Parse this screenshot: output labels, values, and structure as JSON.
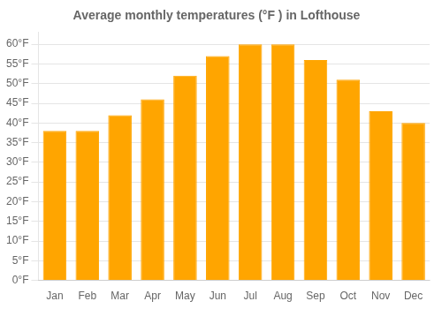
{
  "chart_data": {
    "type": "bar",
    "title": "Average monthly temperatures (°F ) in Lofthouse",
    "categories": [
      "Jan",
      "Feb",
      "Mar",
      "Apr",
      "May",
      "Jun",
      "Jul",
      "Aug",
      "Sep",
      "Oct",
      "Nov",
      "Dec"
    ],
    "values": [
      38,
      38,
      42,
      46,
      52,
      57,
      60,
      60,
      56,
      51,
      43,
      40
    ],
    "color": "#FFA500",
    "ylim": [
      0,
      63
    ],
    "yticks": [
      {
        "value": 0,
        "label": "0°F"
      },
      {
        "value": 5,
        "label": "5°F"
      },
      {
        "value": 10,
        "label": "10°F"
      },
      {
        "value": 15,
        "label": "15°F"
      },
      {
        "value": 20,
        "label": "20°F"
      },
      {
        "value": 25,
        "label": "25°F"
      },
      {
        "value": 30,
        "label": "30°F"
      },
      {
        "value": 35,
        "label": "35°F"
      },
      {
        "value": 40,
        "label": "40°F"
      },
      {
        "value": 45,
        "label": "45°F"
      },
      {
        "value": 50,
        "label": "50°F"
      },
      {
        "value": 55,
        "label": "55°F"
      },
      {
        "value": 60,
        "label": "60°F"
      }
    ],
    "grid": true
  }
}
